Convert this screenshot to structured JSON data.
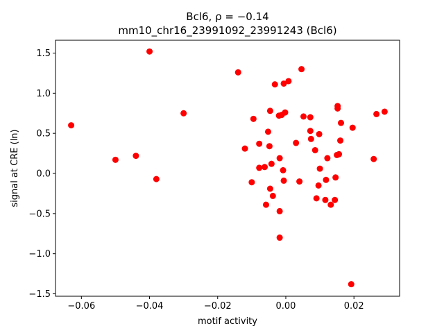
{
  "chart_data": {
    "type": "scatter",
    "title_line1": "Bcl6, ρ = −0.14",
    "title_line2": "mm10_chr16_23991092_23991243 (Bcl6)",
    "xlabel": "motif activity",
    "ylabel": "signal at CRE (ln)",
    "xlim": [
      -0.0676,
      0.0334
    ],
    "ylim": [
      -1.53,
      1.66
    ],
    "xticks": [
      -0.06,
      -0.04,
      -0.02,
      0.0,
      0.02
    ],
    "xtick_labels": [
      "−0.06",
      "−0.04",
      "−0.02",
      "0.00",
      "0.02"
    ],
    "yticks": [
      -1.5,
      -1.0,
      -0.5,
      0.0,
      0.5,
      1.0,
      1.5
    ],
    "ytick_labels": [
      "−1.5",
      "−1.0",
      "−0.5",
      "0.0",
      "0.5",
      "1.0",
      "1.5"
    ],
    "grid": false,
    "marker_color": "#ff0000",
    "points": [
      {
        "x": -0.063,
        "y": 0.6
      },
      {
        "x": -0.05,
        "y": 0.17
      },
      {
        "x": -0.044,
        "y": 0.22
      },
      {
        "x": -0.04,
        "y": 1.52
      },
      {
        "x": -0.038,
        "y": -0.07
      },
      {
        "x": -0.03,
        "y": 0.75
      },
      {
        "x": -0.014,
        "y": 1.26
      },
      {
        "x": -0.012,
        "y": 0.31
      },
      {
        "x": -0.01,
        "y": -0.11
      },
      {
        "x": -0.0095,
        "y": 0.68
      },
      {
        "x": -0.0078,
        "y": 0.37
      },
      {
        "x": -0.0078,
        "y": 0.07
      },
      {
        "x": -0.0062,
        "y": 0.08
      },
      {
        "x": -0.0058,
        "y": -0.39
      },
      {
        "x": -0.0052,
        "y": 0.52
      },
      {
        "x": -0.0048,
        "y": 0.34
      },
      {
        "x": -0.0046,
        "y": 0.78
      },
      {
        "x": -0.0046,
        "y": -0.19
      },
      {
        "x": -0.0042,
        "y": 0.12
      },
      {
        "x": -0.0038,
        "y": -0.28
      },
      {
        "x": -0.0032,
        "y": 1.11
      },
      {
        "x": -0.002,
        "y": 0.72
      },
      {
        "x": -0.0018,
        "y": 0.19
      },
      {
        "x": -0.0018,
        "y": -0.47
      },
      {
        "x": -0.0018,
        "y": -0.8
      },
      {
        "x": -0.0012,
        "y": 0.73
      },
      {
        "x": -0.0008,
        "y": 0.04
      },
      {
        "x": -0.0006,
        "y": -0.09
      },
      {
        "x": -0.0006,
        "y": 1.12
      },
      {
        "x": -0.0002,
        "y": 0.76
      },
      {
        "x": 0.0008,
        "y": 1.15
      },
      {
        "x": 0.003,
        "y": 0.38
      },
      {
        "x": 0.004,
        "y": -0.1
      },
      {
        "x": 0.0046,
        "y": 1.3
      },
      {
        "x": 0.0052,
        "y": 0.71
      },
      {
        "x": 0.0072,
        "y": 0.7
      },
      {
        "x": 0.0072,
        "y": 0.53
      },
      {
        "x": 0.0074,
        "y": 0.43
      },
      {
        "x": 0.0086,
        "y": 0.29
      },
      {
        "x": 0.009,
        "y": -0.31
      },
      {
        "x": 0.0096,
        "y": -0.15
      },
      {
        "x": 0.0098,
        "y": 0.49
      },
      {
        "x": 0.01,
        "y": 0.06
      },
      {
        "x": 0.0116,
        "y": -0.33
      },
      {
        "x": 0.0118,
        "y": -0.08
      },
      {
        "x": 0.0122,
        "y": 0.19
      },
      {
        "x": 0.0132,
        "y": -0.39
      },
      {
        "x": 0.0144,
        "y": -0.33
      },
      {
        "x": 0.0146,
        "y": -0.05
      },
      {
        "x": 0.015,
        "y": 0.23
      },
      {
        "x": 0.0152,
        "y": 0.84
      },
      {
        "x": 0.0152,
        "y": 0.81
      },
      {
        "x": 0.0156,
        "y": 0.24
      },
      {
        "x": 0.016,
        "y": 0.41
      },
      {
        "x": 0.0162,
        "y": 0.63
      },
      {
        "x": 0.0192,
        "y": -1.38
      },
      {
        "x": 0.0196,
        "y": 0.57
      },
      {
        "x": 0.0258,
        "y": 0.18
      },
      {
        "x": 0.0266,
        "y": 0.74
      },
      {
        "x": 0.029,
        "y": 0.77
      }
    ]
  }
}
